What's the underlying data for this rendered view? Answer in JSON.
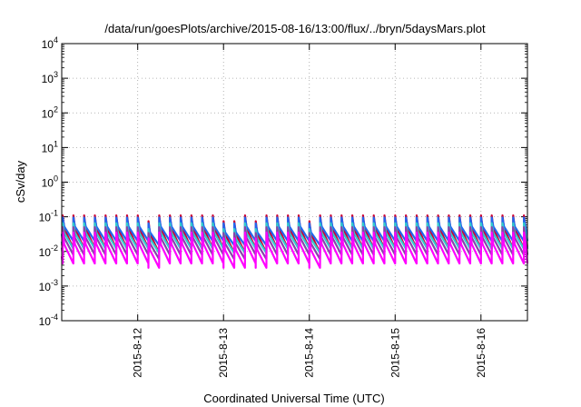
{
  "chart_data": {
    "type": "line",
    "title": "/data/run/goesPlots/archive/2015-08-16/13:00/flux/../bryn/5daysMars.plot",
    "xlabel": "Coordinated Universal Time (UTC)",
    "ylabel": "cSv/day",
    "yscale": "log",
    "ylim": [
      0.0001,
      10000
    ],
    "xlim": [
      "2015-08-11 02:45",
      "2015-08-16 13:00"
    ],
    "grid": true,
    "x_ticks": [
      "2015-8-12",
      "2015-8-13",
      "2015-8-14",
      "2015-8-15",
      "2015-8-16"
    ],
    "y_ticks": [
      {
        "value": 0.0001,
        "base": "10",
        "exp": "-4"
      },
      {
        "value": 0.001,
        "base": "10",
        "exp": "-3"
      },
      {
        "value": 0.01,
        "base": "10",
        "exp": "-2"
      },
      {
        "value": 0.1,
        "base": "10",
        "exp": "-1"
      },
      {
        "value": 1,
        "base": "10",
        "exp": "0"
      },
      {
        "value": 10,
        "base": "10",
        "exp": "1"
      },
      {
        "value": 100,
        "base": "10",
        "exp": "2"
      },
      {
        "value": 1000,
        "base": "10",
        "exp": "3"
      },
      {
        "value": 10000,
        "base": "10",
        "exp": "4"
      }
    ],
    "sawtooth": {
      "period_hours": 3,
      "dropout_times": [
        "2015-08-12 03:00",
        "2015-08-13 00:00",
        "2015-08-13 03:00",
        "2015-08-13 09:00",
        "2015-08-14 00:00"
      ]
    },
    "series": [
      {
        "color": "#cc0033",
        "peak": 0.11,
        "trough": 0.012
      },
      {
        "color": "#2266ee",
        "peak": 0.095,
        "trough": 0.02
      },
      {
        "color": "#33cccc",
        "peak": 0.065,
        "trough": 0.012
      },
      {
        "color": "#8844aa",
        "peak": 0.05,
        "trough": 0.008
      },
      {
        "color": "#ff00ff",
        "peak": 0.035,
        "trough": 0.0045
      }
    ]
  }
}
